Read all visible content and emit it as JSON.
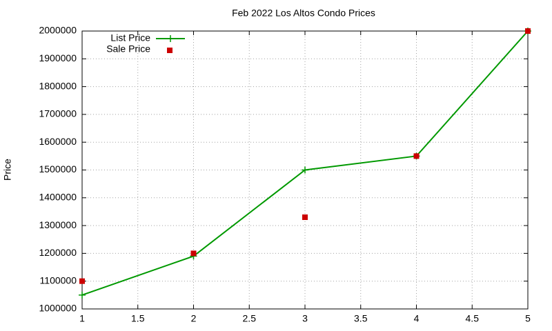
{
  "chart_data": {
    "type": "line",
    "title": "Feb 2022 Los Altos Condo Prices",
    "y_label": "Price",
    "x": [
      1,
      2,
      3,
      4,
      5
    ],
    "series": [
      {
        "name": "List Price",
        "color": "#009900",
        "mode": "lines+markers",
        "values": [
          1050000,
          1190000,
          1500000,
          1550000,
          2000000
        ]
      },
      {
        "name": "Sale Price",
        "color": "#cc0000",
        "mode": "markers",
        "values": [
          1100000,
          1200000,
          1330000,
          1550000,
          2000000
        ]
      }
    ],
    "xlim": [
      1,
      5
    ],
    "xticks": [
      1,
      1.5,
      2,
      2.5,
      3,
      3.5,
      4,
      4.5,
      5
    ],
    "ylim": [
      1000000,
      2000000
    ],
    "yticks": [
      1000000,
      1100000,
      1200000,
      1300000,
      1400000,
      1500000,
      1600000,
      1700000,
      1800000,
      1900000,
      2000000
    ],
    "grid": true,
    "legend": "top-left"
  }
}
